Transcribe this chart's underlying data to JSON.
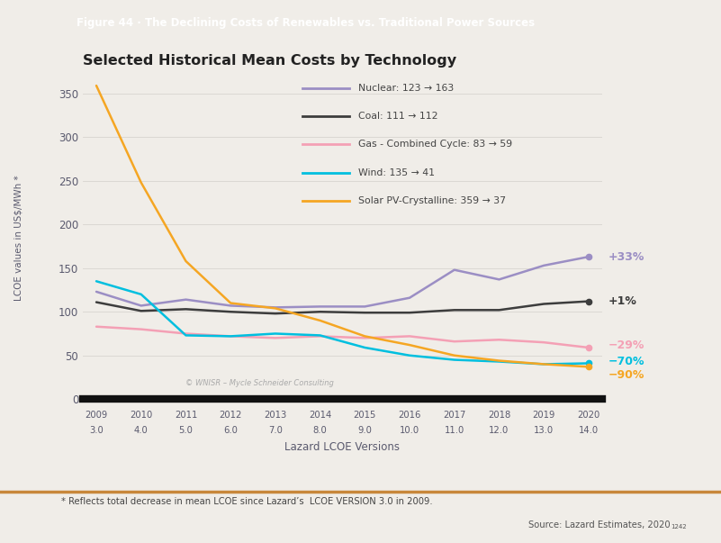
{
  "title": "Selected Historical Mean Costs by Technology",
  "ylabel": "LCOE values in US$/MWh *",
  "xlabel": "Lazard LCOE Versions",
  "figure_label": "Figure 44 · The Declining Costs of Renewables vs. Traditional Power Sources",
  "footnote": "* Reflects total decrease in mean LCOE since Lazard’s  LCOE VERSION 3.0 in 2009.",
  "source": "Source: Lazard Estimates, 2020",
  "source_sup": "1242",
  "watermark": "© WNISR – Mycle Schneider Consulting",
  "years": [
    2009,
    2010,
    2011,
    2012,
    2013,
    2014,
    2015,
    2016,
    2017,
    2018,
    2019,
    2020
  ],
  "versions": [
    "3.0",
    "4.0",
    "5.0",
    "6.0",
    "7.0",
    "8.0",
    "9.0",
    "10.0",
    "11.0",
    "12.0",
    "13.0",
    "14.0"
  ],
  "nuclear": [
    123,
    107,
    114,
    107,
    105,
    106,
    106,
    116,
    148,
    137,
    153,
    163
  ],
  "coal": [
    111,
    101,
    103,
    100,
    98,
    100,
    99,
    99,
    102,
    102,
    109,
    112
  ],
  "gas": [
    83,
    80,
    75,
    72,
    70,
    72,
    70,
    72,
    66,
    68,
    65,
    59
  ],
  "wind": [
    135,
    120,
    73,
    72,
    75,
    73,
    59,
    50,
    45,
    43,
    40,
    41
  ],
  "solar": [
    359,
    248,
    158,
    110,
    104,
    90,
    72,
    62,
    50,
    44,
    40,
    37
  ],
  "nuclear_color": "#9B8EC4",
  "coal_color": "#3D3D3D",
  "gas_color": "#F4A0B5",
  "wind_color": "#00BFDF",
  "solar_color": "#F5A623",
  "nuclear_pct": "+33%",
  "coal_pct": "+1%",
  "gas_pct": "−29%",
  "wind_pct": "−70%",
  "solar_pct": "−90%",
  "nuclear_pct_color": "#9B8EC4",
  "coal_pct_color": "#3D3D3D",
  "gas_pct_color": "#F4A0B5",
  "wind_pct_color": "#00BFDF",
  "solar_pct_color": "#F5A623",
  "bg_color": "#F0EDE8",
  "plot_bg": "#EEEAE4",
  "header_bg": "#E8973A",
  "header_text_color": "#FFFFFF",
  "bottom_bar_color": "#C8873A",
  "axis_text_color": "#5A5A6E",
  "grid_color": "#D8D4CF",
  "ylim": [
    0,
    370
  ],
  "yticks": [
    0,
    50,
    100,
    150,
    200,
    250,
    300,
    350
  ],
  "legend_entries": [
    {
      "label": "Nuclear: 123 → 163",
      "color": "#9B8EC4"
    },
    {
      "label": "Coal: 111 → 112",
      "color": "#3D3D3D"
    },
    {
      "label": "Gas - Combined Cycle: 83 → 59",
      "color": "#F4A0B5"
    },
    {
      "label": "Wind: 135 → 41",
      "color": "#00BFDF"
    },
    {
      "label": "Solar PV-Crystalline: 359 → 37",
      "color": "#F5A623"
    }
  ]
}
